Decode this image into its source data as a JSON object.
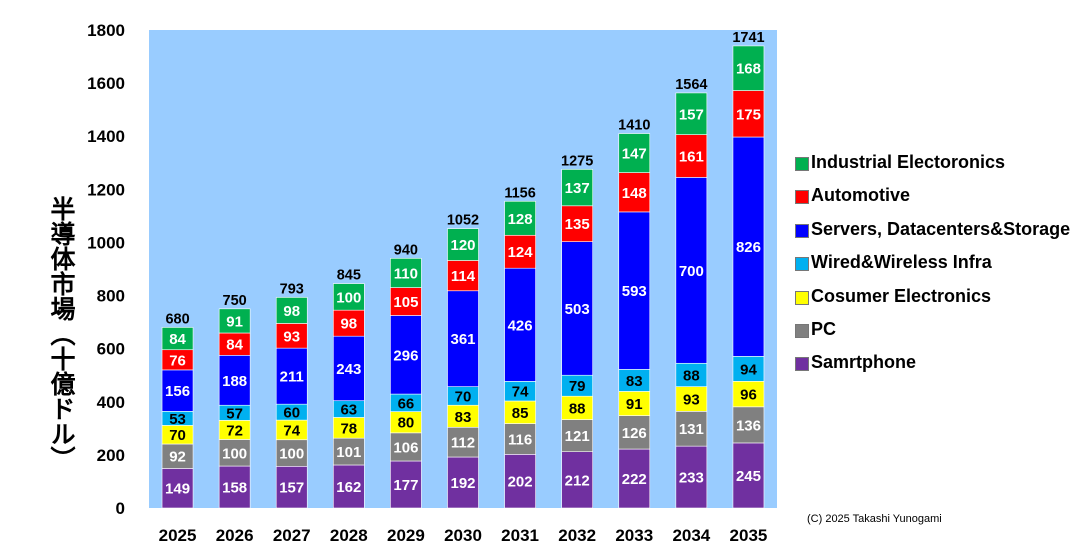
{
  "chart_data": {
    "type": "bar",
    "stacked": true,
    "title": "",
    "xlabel": "",
    "ylabel": "半導体市場（十億ドル）",
    "ylim": [
      0,
      1800
    ],
    "yticks": [
      0,
      200,
      400,
      600,
      800,
      1000,
      1200,
      1400,
      1600,
      1800
    ],
    "grid": false,
    "legend_position": "right",
    "background": "#99ccff",
    "categories": [
      "2025",
      "2026",
      "2027",
      "2028",
      "2029",
      "2030",
      "2031",
      "2032",
      "2033",
      "2034",
      "2035"
    ],
    "series": [
      {
        "name": "Samrtphone",
        "color": "#7030a0",
        "label_color": "#ffffff",
        "values": [
          149,
          158,
          157,
          162,
          177,
          192,
          202,
          212,
          222,
          233,
          245
        ]
      },
      {
        "name": "PC",
        "color": "#808080",
        "label_color": "#ffffff",
        "values": [
          92,
          100,
          100,
          101,
          106,
          112,
          116,
          121,
          126,
          131,
          136
        ]
      },
      {
        "name": "Cosumer Electronics",
        "color": "#ffff00",
        "label_color": "#000000",
        "values": [
          70,
          72,
          74,
          78,
          80,
          83,
          85,
          88,
          91,
          93,
          96
        ]
      },
      {
        "name": "Wired&Wireless Infra",
        "color": "#00b0f0",
        "label_color": "#000000",
        "values": [
          53,
          57,
          60,
          63,
          66,
          70,
          74,
          79,
          83,
          88,
          94
        ]
      },
      {
        "name": "Servers, Datacenters&Storage",
        "color": "#0000ff",
        "label_color": "#ffffff",
        "values": [
          156,
          188,
          211,
          243,
          296,
          361,
          426,
          503,
          593,
          700,
          826
        ]
      },
      {
        "name": "Automotive",
        "color": "#ff0000",
        "label_color": "#ffffff",
        "values": [
          76,
          84,
          93,
          98,
          105,
          114,
          124,
          135,
          148,
          161,
          175
        ]
      },
      {
        "name": "Industrial Electoronics",
        "color": "#00b050",
        "label_color": "#ffffff",
        "values": [
          84,
          91,
          98,
          100,
          110,
          120,
          128,
          137,
          147,
          157,
          168
        ]
      }
    ],
    "totals": [
      680,
      750,
      793,
      845,
      940,
      1052,
      1156,
      1275,
      1410,
      1564,
      1741
    ]
  },
  "copyright": "(C) 2025 Takashi Yunogami"
}
